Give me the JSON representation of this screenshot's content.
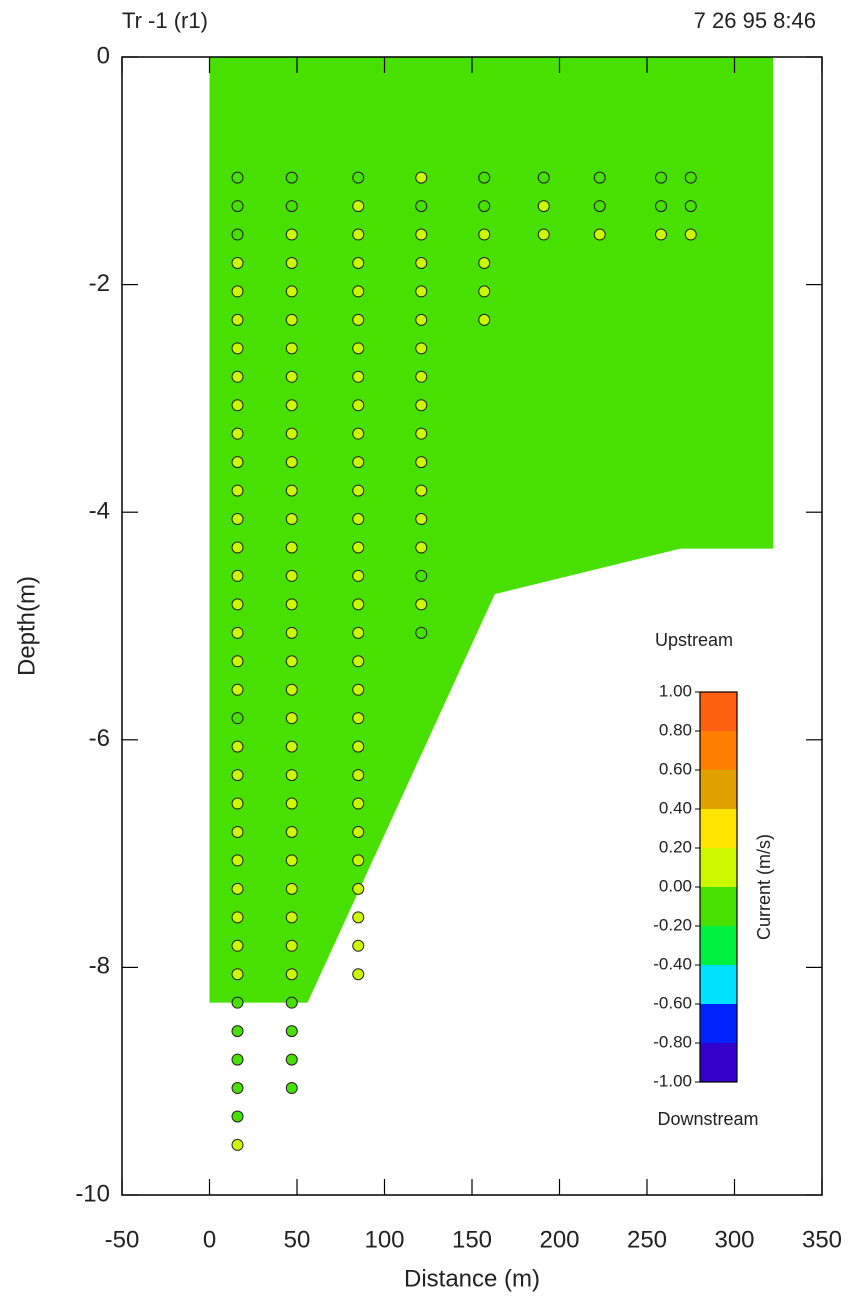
{
  "chart_data": {
    "type": "section",
    "title": "Tr -1 (r1)",
    "timestamp": "7 26 95  8:46",
    "x_label": "Distance (m)",
    "y_label": "Depth(m)",
    "xlim": [
      -50,
      350
    ],
    "ylim": [
      -10,
      0
    ],
    "xticks": [
      -50,
      0,
      50,
      100,
      150,
      200,
      250,
      300,
      350
    ],
    "yticks": [
      0,
      -2,
      -4,
      -6,
      -8,
      -10
    ],
    "section": {
      "color": "#48e000",
      "x": [
        0,
        322,
        322,
        269,
        163,
        56,
        0
      ],
      "y": [
        0,
        0,
        -4.32,
        -4.32,
        -4.72,
        -8.31,
        -8.31
      ]
    },
    "columns": [
      {
        "x": 16,
        "depths": [
          -1.06,
          -1.31,
          -1.56,
          -1.81,
          -2.06,
          -2.31,
          -2.56,
          -2.81,
          -3.06,
          -3.31,
          -3.56,
          -3.81,
          -4.06,
          -4.31,
          -4.56,
          -4.81,
          -5.06,
          -5.31,
          -5.56,
          -5.81,
          -6.06,
          -6.31,
          -6.56,
          -6.81,
          -7.06,
          -7.31,
          -7.56,
          -7.81,
          -8.06,
          -8.31,
          -8.56,
          -8.81,
          -9.06,
          -9.31,
          -9.56
        ],
        "currents": [
          -0.1,
          -0.1,
          -0.1,
          0.1,
          0.1,
          0.1,
          0.1,
          0.1,
          0.1,
          0.1,
          0.1,
          0.1,
          0.1,
          0.1,
          0.1,
          0.1,
          0.1,
          0.1,
          0.1,
          -0.1,
          0.1,
          0.1,
          0.1,
          0.1,
          0.1,
          0.1,
          0.1,
          0.1,
          0.1,
          -0.1,
          -0.1,
          -0.1,
          -0.1,
          -0.1,
          0.1
        ]
      },
      {
        "x": 47,
        "depths": [
          -1.06,
          -1.31,
          -1.56,
          -1.81,
          -2.06,
          -2.31,
          -2.56,
          -2.81,
          -3.06,
          -3.31,
          -3.56,
          -3.81,
          -4.06,
          -4.31,
          -4.56,
          -4.81,
          -5.06,
          -5.31,
          -5.56,
          -5.81,
          -6.06,
          -6.31,
          -6.56,
          -6.81,
          -7.06,
          -7.31,
          -7.56,
          -7.81,
          -8.06,
          -8.31,
          -8.56,
          -8.81,
          -9.06
        ],
        "currents": [
          -0.1,
          -0.1,
          0.1,
          0.1,
          0.1,
          0.1,
          0.1,
          0.1,
          0.1,
          0.1,
          0.1,
          0.1,
          0.1,
          0.1,
          0.1,
          0.1,
          0.1,
          0.1,
          0.1,
          0.1,
          0.1,
          0.1,
          0.1,
          0.1,
          0.1,
          0.1,
          0.1,
          0.1,
          0.1,
          -0.1,
          -0.1,
          -0.1,
          -0.1
        ]
      },
      {
        "x": 85,
        "depths": [
          -1.06,
          -1.31,
          -1.56,
          -1.81,
          -2.06,
          -2.31,
          -2.56,
          -2.81,
          -3.06,
          -3.31,
          -3.56,
          -3.81,
          -4.06,
          -4.31,
          -4.56,
          -4.81,
          -5.06,
          -5.31,
          -5.56,
          -5.81,
          -6.06,
          -6.31,
          -6.56,
          -6.81,
          -7.06,
          -7.31,
          -7.56,
          -7.81,
          -8.06
        ],
        "currents": [
          -0.1,
          0.1,
          0.1,
          0.1,
          0.1,
          0.1,
          0.1,
          0.1,
          0.1,
          0.1,
          0.1,
          0.1,
          0.1,
          0.1,
          0.1,
          0.1,
          0.1,
          0.1,
          0.1,
          0.1,
          0.1,
          0.1,
          0.1,
          0.1,
          0.1,
          0.1,
          0.1,
          0.1,
          0.1
        ]
      },
      {
        "x": 121,
        "depths": [
          -1.06,
          -1.31,
          -1.56,
          -1.81,
          -2.06,
          -2.31,
          -2.56,
          -2.81,
          -3.06,
          -3.31,
          -3.56,
          -3.81,
          -4.06,
          -4.31,
          -4.56,
          -4.81,
          -5.06
        ],
        "currents": [
          0.1,
          -0.1,
          0.1,
          0.1,
          0.1,
          0.1,
          0.1,
          0.1,
          0.1,
          0.1,
          0.1,
          0.1,
          0.1,
          0.1,
          -0.1,
          0.1,
          -0.1
        ]
      },
      {
        "x": 157,
        "depths": [
          -1.06,
          -1.31,
          -1.56,
          -1.81,
          -2.06,
          -2.31
        ],
        "currents": [
          -0.1,
          -0.1,
          0.1,
          0.1,
          0.1,
          0.1
        ]
      },
      {
        "x": 191,
        "depths": [
          -1.06,
          -1.31,
          -1.56
        ],
        "currents": [
          -0.1,
          0.1,
          0.1
        ]
      },
      {
        "x": 223,
        "depths": [
          -1.06,
          -1.31,
          -1.56
        ],
        "currents": [
          -0.1,
          -0.1,
          0.1
        ]
      },
      {
        "x": 258,
        "depths": [
          -1.06,
          -1.31,
          -1.56
        ],
        "currents": [
          -0.1,
          -0.1,
          0.1
        ]
      },
      {
        "x": 275,
        "depths": [
          -1.06,
          -1.31,
          -1.56
        ],
        "currents": [
          -0.1,
          -0.1,
          0.1
        ]
      }
    ],
    "colorbar": {
      "title": "Current (m/s)",
      "top_label": "Upstream",
      "bottom_label": "Downstream",
      "lim": [
        -1,
        1
      ],
      "ticks": [
        {
          "value": 1,
          "label": "1.00"
        },
        {
          "value": 0.8,
          "label": "0.80"
        },
        {
          "value": 0.6,
          "label": "0.60"
        },
        {
          "value": 0.4,
          "label": "0.40"
        },
        {
          "value": 0.2,
          "label": "0.20"
        },
        {
          "value": 0,
          "label": "0.00"
        },
        {
          "value": -0.2,
          "label": "-0.20"
        },
        {
          "value": -0.4,
          "label": "-0.40"
        },
        {
          "value": -0.6,
          "label": "-0.60"
        },
        {
          "value": -0.8,
          "label": "-0.80"
        },
        {
          "value": -1,
          "label": "-1.00"
        }
      ],
      "colors": [
        "#3300cc",
        "#0022ff",
        "#00e0ff",
        "#00f040",
        "#48e000",
        "#ccf800",
        "#ffe400",
        "#e0a000",
        "#ff8000",
        "#ff6010"
      ]
    }
  }
}
